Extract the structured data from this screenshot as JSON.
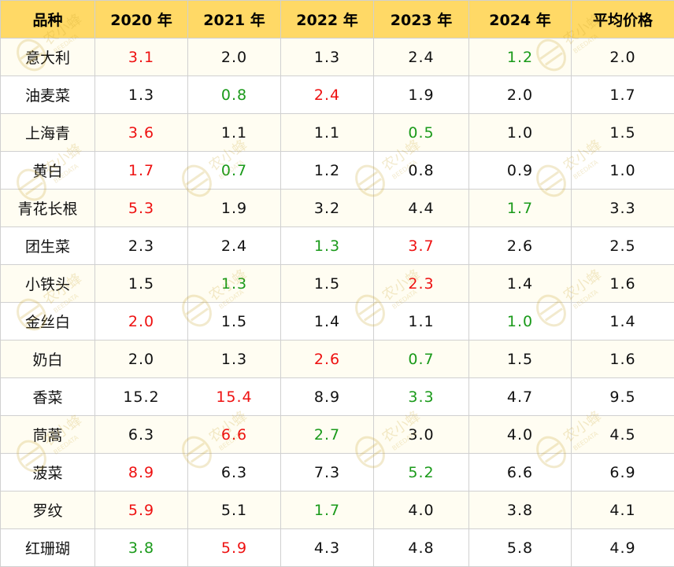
{
  "chart_data": {
    "type": "table",
    "columns": [
      "品种",
      "2020 年",
      "2021 年",
      "2022 年",
      "2023 年",
      "2024 年",
      "平均价格"
    ],
    "rows": [
      {
        "name": "意大利",
        "values": [
          "3.1",
          "2.0",
          "1.3",
          "2.4",
          "1.2",
          "2.0"
        ],
        "highlights": [
          "hi",
          "",
          "",
          "",
          "lo",
          ""
        ]
      },
      {
        "name": "油麦菜",
        "values": [
          "1.3",
          "0.8",
          "2.4",
          "1.9",
          "2.0",
          "1.7"
        ],
        "highlights": [
          "",
          "lo",
          "hi",
          "",
          "",
          ""
        ]
      },
      {
        "name": "上海青",
        "values": [
          "3.6",
          "1.1",
          "1.1",
          "0.5",
          "1.0",
          "1.5"
        ],
        "highlights": [
          "hi",
          "",
          "",
          "lo",
          "",
          ""
        ]
      },
      {
        "name": "黄白",
        "values": [
          "1.7",
          "0.7",
          "1.2",
          "0.8",
          "0.9",
          "1.0"
        ],
        "highlights": [
          "hi",
          "lo",
          "",
          "",
          "",
          ""
        ]
      },
      {
        "name": "青花长根",
        "values": [
          "5.3",
          "1.9",
          "3.2",
          "4.4",
          "1.7",
          "3.3"
        ],
        "highlights": [
          "hi",
          "",
          "",
          "",
          "lo",
          ""
        ]
      },
      {
        "name": "团生菜",
        "values": [
          "2.3",
          "2.4",
          "1.3",
          "3.7",
          "2.6",
          "2.5"
        ],
        "highlights": [
          "",
          "",
          "lo",
          "hi",
          "",
          ""
        ]
      },
      {
        "name": "小铁头",
        "values": [
          "1.5",
          "1.3",
          "1.5",
          "2.3",
          "1.4",
          "1.6"
        ],
        "highlights": [
          "",
          "lo",
          "",
          "hi",
          "",
          ""
        ]
      },
      {
        "name": "金丝白",
        "values": [
          "2.0",
          "1.5",
          "1.4",
          "1.1",
          "1.0",
          "1.4"
        ],
        "highlights": [
          "hi",
          "",
          "",
          "",
          "lo",
          ""
        ]
      },
      {
        "name": "奶白",
        "values": [
          "2.0",
          "1.3",
          "2.6",
          "0.7",
          "1.5",
          "1.6"
        ],
        "highlights": [
          "",
          "",
          "hi",
          "lo",
          "",
          ""
        ]
      },
      {
        "name": "香菜",
        "values": [
          "15.2",
          "15.4",
          "8.9",
          "3.3",
          "4.7",
          "9.5"
        ],
        "highlights": [
          "",
          "hi",
          "",
          "lo",
          "",
          ""
        ]
      },
      {
        "name": "茼蒿",
        "values": [
          "6.3",
          "6.6",
          "2.7",
          "3.0",
          "4.0",
          "4.5"
        ],
        "highlights": [
          "",
          "hi",
          "lo",
          "",
          "",
          ""
        ]
      },
      {
        "name": "菠菜",
        "values": [
          "8.9",
          "6.3",
          "7.3",
          "5.2",
          "6.6",
          "6.9"
        ],
        "highlights": [
          "hi",
          "",
          "",
          "lo",
          "",
          ""
        ]
      },
      {
        "name": "罗纹",
        "values": [
          "5.9",
          "5.1",
          "1.7",
          "4.0",
          "3.8",
          "4.1"
        ],
        "highlights": [
          "hi",
          "",
          "lo",
          "",
          "",
          ""
        ]
      },
      {
        "name": "红珊瑚",
        "values": [
          "3.8",
          "5.9",
          "4.3",
          "4.8",
          "5.8",
          "4.9"
        ],
        "highlights": [
          "lo",
          "hi",
          "",
          "",
          "",
          ""
        ]
      }
    ]
  },
  "colors": {
    "header_bg": "#ffd966",
    "high_value": "#ee1111",
    "low_value": "#1a9a1a",
    "row_alt_bg": "#fffdf2"
  },
  "watermark": {
    "main": "农小蜂",
    "sub": "BEEDATA"
  }
}
